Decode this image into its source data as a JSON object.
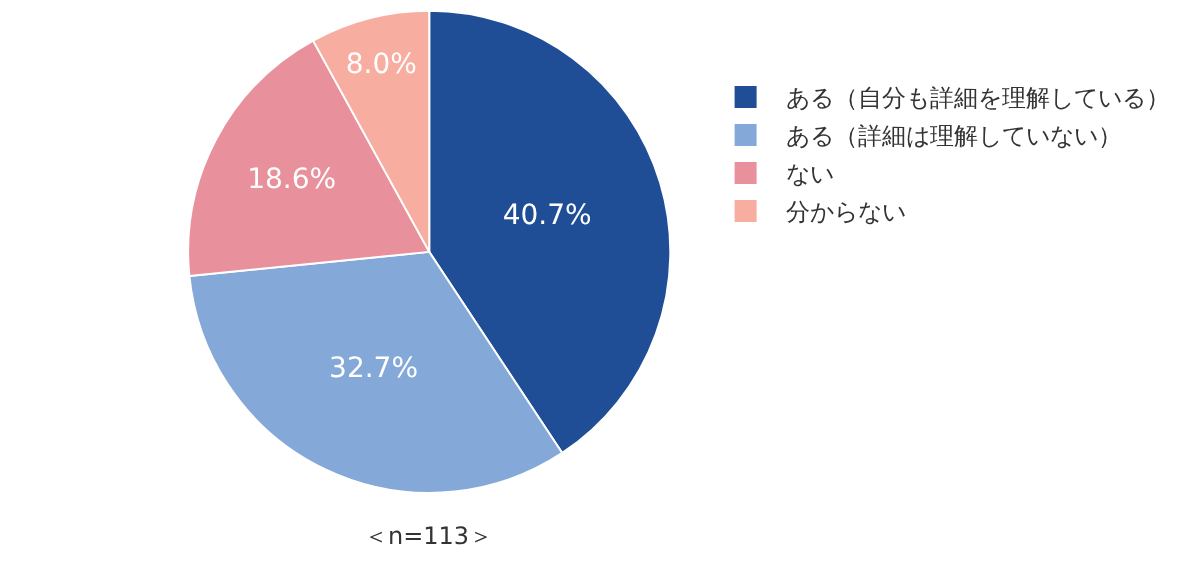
{
  "chart_data": {
    "type": "pie",
    "categories": [
      "ある（自分も詳細を理解している）",
      "ある（詳細は理解していない）",
      "ない",
      "分からない"
    ],
    "values": [
      40.7,
      32.7,
      18.6,
      8.0
    ],
    "value_labels": [
      "40.7%",
      "32.7%",
      "18.6%",
      "8.0%"
    ],
    "colors": [
      "#1f4e96",
      "#84a9d8",
      "#e8909c",
      "#f7ada0"
    ],
    "annotations": [
      "＜n=113＞"
    ],
    "legend": "right"
  }
}
